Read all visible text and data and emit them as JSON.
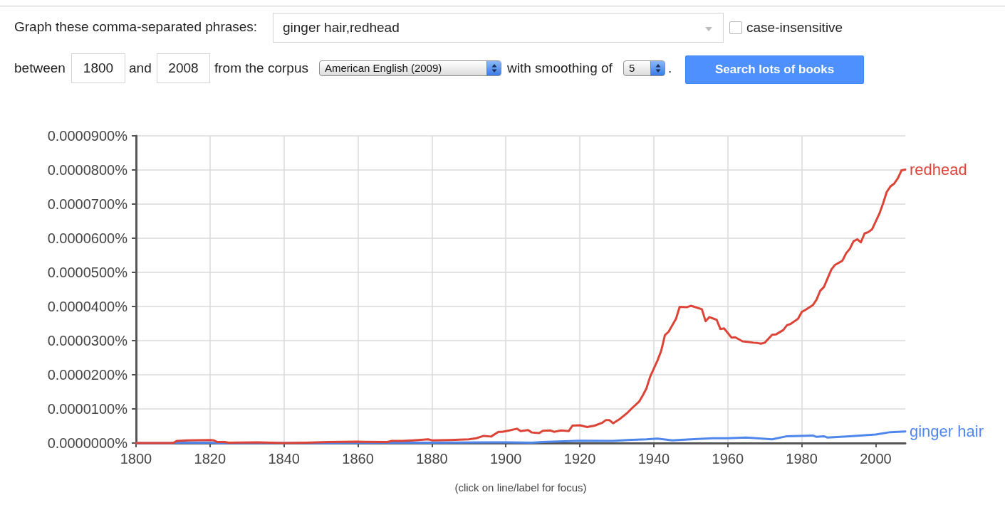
{
  "chart_data": {
    "type": "line",
    "annotations": [
      "Graph these comma-separated phrases:",
      "ginger hair,redhead",
      "case-insensitive",
      "between",
      "1800",
      "and",
      "2008",
      "from the corpus",
      "American English (2009)",
      "with smoothing of",
      "5",
      ".",
      "Search lots of books",
      "(click on line/label for focus)"
    ],
    "series": [
      {
        "name": "ginger hair",
        "color": "#4f86ec",
        "x": [
          1800,
          1810,
          1811,
          1820,
          1822,
          1850,
          1870,
          1880,
          1896,
          1900,
          1907,
          1910,
          1920,
          1929,
          1933,
          1938,
          1941,
          1945,
          1950,
          1956,
          1960,
          1965,
          1972,
          1976,
          1983,
          1984,
          1986,
          1987,
          1993,
          2000,
          2004,
          2008
        ],
        "values": [
          0,
          0,
          1e-07,
          1e-07,
          0,
          0,
          1e-07,
          1e-07,
          2e-07,
          2e-07,
          1e-07,
          3e-07,
          7e-07,
          6e-07,
          9e-07,
          1.1e-06,
          1.3e-06,
          8e-07,
          1.1e-06,
          1.4e-06,
          1.4e-06,
          1.6e-06,
          1.1e-06,
          2e-06,
          2.2e-06,
          1.8e-06,
          2e-06,
          1.6e-06,
          2e-06,
          2.5e-06,
          3.2e-06,
          3.4e-06
        ]
      },
      {
        "name": "redhead",
        "color": "#dc4437",
        "x": [
          1800,
          1810,
          1811,
          1814,
          1820,
          1821,
          1822,
          1824,
          1825,
          1833,
          1840,
          1846,
          1852,
          1860,
          1868,
          1869,
          1872,
          1875,
          1879,
          1880,
          1885,
          1890,
          1892,
          1894,
          1896,
          1898,
          1899,
          1901,
          1903,
          1904,
          1906,
          1907,
          1909,
          1910,
          1912,
          1913,
          1915,
          1917,
          1918,
          1920,
          1922,
          1924,
          1926,
          1927,
          1928,
          1929,
          1931,
          1933,
          1934,
          1936,
          1937,
          1938,
          1939,
          1941,
          1942,
          1943,
          1944,
          1946,
          1947,
          1949,
          1950,
          1951,
          1953,
          1954,
          1955,
          1957,
          1958,
          1959,
          1961,
          1962,
          1964,
          1965,
          1967,
          1968,
          1969,
          1970,
          1972,
          1973,
          1975,
          1976,
          1977,
          1979,
          1980,
          1981,
          1983,
          1984,
          1985,
          1986,
          1988,
          1989,
          1991,
          1992,
          1993,
          1994,
          1995,
          1996,
          1997,
          1998,
          1999,
          2001,
          2002,
          2003,
          2004,
          2005,
          2006,
          2007,
          2008
        ],
        "values": [
          0,
          0,
          6e-07,
          8e-07,
          9e-07,
          8e-07,
          3e-07,
          3e-07,
          1e-07,
          2e-07,
          0,
          1e-07,
          3e-07,
          4e-07,
          3e-07,
          6e-07,
          6e-07,
          8e-07,
          1.1e-06,
          8e-07,
          9e-07,
          1.1e-06,
          1.4e-06,
          2.1e-06,
          1.9e-06,
          3.3e-06,
          3.3e-06,
          3.7e-06,
          4.2e-06,
          3.5e-06,
          3.8e-06,
          3.1e-06,
          2.9e-06,
          3.6e-06,
          3.7e-06,
          3.3e-06,
          3.7e-06,
          3.5e-06,
          5.1e-06,
          5.2e-06,
          4.7e-06,
          5.1e-06,
          5.9e-06,
          6.7e-06,
          6.7e-06,
          5.8e-06,
          7.2e-06,
          9e-06,
          1.01e-05,
          1.21e-05,
          1.39e-05,
          1.6e-05,
          1.94e-05,
          2.42e-05,
          2.7e-05,
          3.16e-05,
          3.26e-05,
          3.64e-05,
          3.99e-05,
          3.98e-05,
          4.02e-05,
          3.99e-05,
          3.92e-05,
          3.57e-05,
          3.69e-05,
          3.61e-05,
          3.34e-05,
          3.36e-05,
          3.09e-05,
          3.1e-05,
          2.98e-05,
          2.97e-05,
          2.94e-05,
          2.93e-05,
          2.91e-05,
          2.94e-05,
          3.17e-05,
          3.18e-05,
          3.31e-05,
          3.45e-05,
          3.49e-05,
          3.64e-05,
          3.84e-05,
          3.9e-05,
          4.04e-05,
          4.2e-05,
          4.46e-05,
          4.57e-05,
          5.08e-05,
          5.22e-05,
          5.34e-05,
          5.56e-05,
          5.69e-05,
          5.91e-05,
          5.97e-05,
          5.88e-05,
          6.14e-05,
          6.18e-05,
          6.26e-05,
          6.72e-05,
          7.02e-05,
          7.36e-05,
          7.52e-05,
          7.6e-05,
          7.76e-05,
          7.99e-05,
          8.01e-05
        ]
      }
    ],
    "xlim": [
      1800,
      2008
    ],
    "xticks": [
      1800,
      1820,
      1840,
      1860,
      1880,
      1900,
      1920,
      1940,
      1960,
      1980,
      2000
    ],
    "ylim": [
      0,
      9e-05
    ],
    "yticks": [
      {
        "value": 0,
        "label": "0.0000000%"
      },
      {
        "value": 1e-05,
        "label": "0.0000100%"
      },
      {
        "value": 2e-05,
        "label": "0.0000200%"
      },
      {
        "value": 3e-05,
        "label": "0.0000300%"
      },
      {
        "value": 4e-05,
        "label": "0.0000400%"
      },
      {
        "value": 5e-05,
        "label": "0.0000500%"
      },
      {
        "value": 6e-05,
        "label": "0.0000600%"
      },
      {
        "value": 7e-05,
        "label": "0.0000700%"
      },
      {
        "value": 8e-05,
        "label": "0.0000800%"
      },
      {
        "value": 9e-05,
        "label": "0.0000900%"
      }
    ],
    "grid": true,
    "marker": "none",
    "line_style": "solid"
  }
}
